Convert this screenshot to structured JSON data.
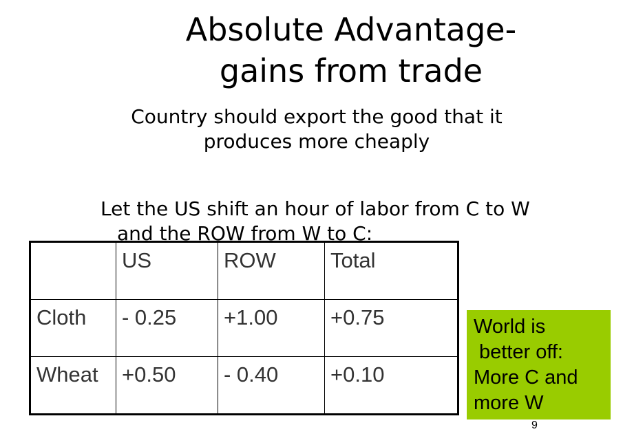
{
  "slide": {
    "title_lines": [
      "Absolute Advantage-",
      "gains from trade"
    ],
    "subtitle_lines": [
      "Country should export the good that it",
      "produces more cheaply"
    ],
    "intro_lines": [
      "Let the US shift an hour of labor from C to W",
      "and the ROW from W to C:"
    ],
    "table": {
      "headers": [
        "",
        "US",
        "ROW",
        "Total"
      ],
      "rows": [
        [
          "Cloth",
          "- 0.25",
          "+1.00",
          "+0.75"
        ],
        [
          "Wheat",
          "+0.50",
          "- 0.40",
          "+0.10"
        ]
      ]
    },
    "callout": {
      "lines": [
        "World is",
        "better off:",
        "More C and",
        "more W"
      ],
      "background": "#99cc00"
    },
    "page_number": "9"
  }
}
